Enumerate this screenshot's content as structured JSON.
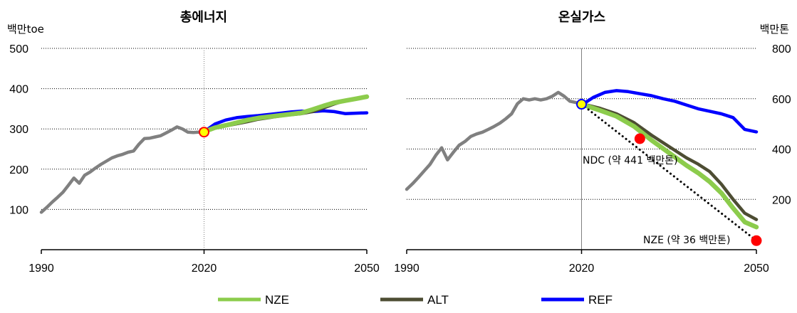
{
  "chart_data": [
    {
      "type": "line",
      "title": "총에너지",
      "ylabel": "백만toe",
      "xlim": [
        1990,
        2050
      ],
      "ylim": [
        0,
        500
      ],
      "yticks": [
        100,
        200,
        300,
        400,
        500
      ],
      "xticks": [
        1990,
        2020,
        2050
      ],
      "grid": true,
      "series": [
        {
          "name": "history",
          "color": "#808080",
          "x": [
            1990,
            1991,
            1992,
            1993,
            1994,
            1995,
            1996,
            1997,
            1998,
            1999,
            2000,
            2001,
            2002,
            2003,
            2004,
            2005,
            2006,
            2007,
            2008,
            2009,
            2010,
            2011,
            2012,
            2013,
            2014,
            2015,
            2016,
            2017,
            2018,
            2019,
            2020
          ],
          "y": [
            93,
            105,
            118,
            130,
            143,
            160,
            178,
            165,
            185,
            193,
            203,
            212,
            220,
            228,
            233,
            237,
            242,
            245,
            262,
            276,
            277,
            280,
            283,
            290,
            297,
            305,
            300,
            292,
            291,
            292,
            292
          ]
        },
        {
          "name": "NZE",
          "color": "#8ccc4c",
          "x": [
            2020,
            2022,
            2025,
            2028,
            2030,
            2033,
            2035,
            2038,
            2040,
            2042,
            2044,
            2046,
            2048,
            2050
          ],
          "y": [
            293,
            303,
            312,
            322,
            327,
            332,
            335,
            340,
            348,
            357,
            365,
            370,
            375,
            380
          ]
        },
        {
          "name": "ALT",
          "color": "#4d4d33",
          "x": [
            2020,
            2022,
            2025,
            2028,
            2030,
            2033,
            2035,
            2038,
            2040,
            2042,
            2044,
            2046,
            2048,
            2050
          ],
          "y": [
            293,
            302,
            310,
            318,
            324,
            330,
            334,
            338,
            343,
            352,
            362,
            370,
            375,
            381
          ]
        },
        {
          "name": "REF",
          "color": "#0000ff",
          "x": [
            2020,
            2022,
            2024,
            2026,
            2028,
            2030,
            2032,
            2034,
            2036,
            2038,
            2040,
            2042,
            2044,
            2046,
            2048,
            2050
          ],
          "y": [
            293,
            312,
            322,
            328,
            331,
            333,
            336,
            339,
            342,
            344,
            343,
            345,
            343,
            338,
            339,
            340
          ]
        }
      ],
      "markers": [
        {
          "x": 2020,
          "y": 292,
          "fill": "#ffff00",
          "stroke": "#ff0000"
        }
      ]
    },
    {
      "type": "line",
      "title": "온실가스",
      "ylabel": "백만톤",
      "xlim": [
        1990,
        2050
      ],
      "ylim": [
        0,
        800
      ],
      "yticks": [
        200,
        400,
        600,
        800
      ],
      "xticks": [
        1990,
        2020,
        2050
      ],
      "grid": true,
      "series": [
        {
          "name": "history",
          "color": "#808080",
          "x": [
            1990,
            1991,
            1992,
            1993,
            1994,
            1995,
            1996,
            1997,
            1998,
            1999,
            2000,
            2001,
            2002,
            2003,
            2004,
            2005,
            2006,
            2007,
            2008,
            2009,
            2010,
            2011,
            2012,
            2013,
            2014,
            2015,
            2016,
            2017,
            2018,
            2019,
            2020
          ],
          "y": [
            240,
            262,
            287,
            313,
            339,
            375,
            405,
            357,
            387,
            415,
            430,
            450,
            460,
            467,
            478,
            490,
            503,
            520,
            540,
            580,
            600,
            595,
            600,
            595,
            600,
            610,
            625,
            610,
            590,
            585,
            578
          ]
        },
        {
          "name": "NZE",
          "color": "#8ccc4c",
          "x": [
            2020,
            2023,
            2026,
            2029,
            2032,
            2035,
            2038,
            2040,
            2042,
            2044,
            2046,
            2048,
            2050
          ],
          "y": [
            578,
            555,
            530,
            490,
            435,
            385,
            335,
            305,
            270,
            225,
            165,
            110,
            90
          ]
        },
        {
          "name": "ALT",
          "color": "#4d4d33",
          "x": [
            2020,
            2023,
            2026,
            2029,
            2032,
            2035,
            2038,
            2040,
            2042,
            2044,
            2046,
            2048,
            2050
          ],
          "y": [
            580,
            563,
            540,
            505,
            455,
            410,
            365,
            340,
            310,
            260,
            200,
            145,
            120
          ]
        },
        {
          "name": "REF",
          "color": "#0000ff",
          "x": [
            2020,
            2022,
            2024,
            2026,
            2028,
            2030,
            2032,
            2034,
            2036,
            2038,
            2040,
            2042,
            2044,
            2046,
            2048,
            2050
          ],
          "y": [
            575,
            605,
            625,
            632,
            628,
            620,
            612,
            600,
            590,
            575,
            560,
            550,
            540,
            525,
            478,
            468
          ]
        },
        {
          "name": "target-path",
          "color": "#000000",
          "dashed": true,
          "x": [
            2020,
            2050
          ],
          "y": [
            578,
            36
          ]
        }
      ],
      "markers": [
        {
          "x": 2020,
          "y": 578,
          "fill": "#ffff00",
          "stroke": "#0000ff"
        },
        {
          "x": 2030,
          "y": 441,
          "fill": "#ff0000",
          "stroke": "#ff0000"
        },
        {
          "x": 2050,
          "y": 36,
          "fill": "#ff0000",
          "stroke": "#ff0000"
        }
      ],
      "annotations": [
        {
          "text": "NDC (약 441 백만톤)"
        },
        {
          "text": "NZE (약 36 백만톤)"
        }
      ]
    }
  ],
  "legend": [
    {
      "label": "NZE",
      "color": "#8ccc4c"
    },
    {
      "label": "ALT",
      "color": "#4d4d33"
    },
    {
      "label": "REF",
      "color": "#0000ff"
    }
  ]
}
